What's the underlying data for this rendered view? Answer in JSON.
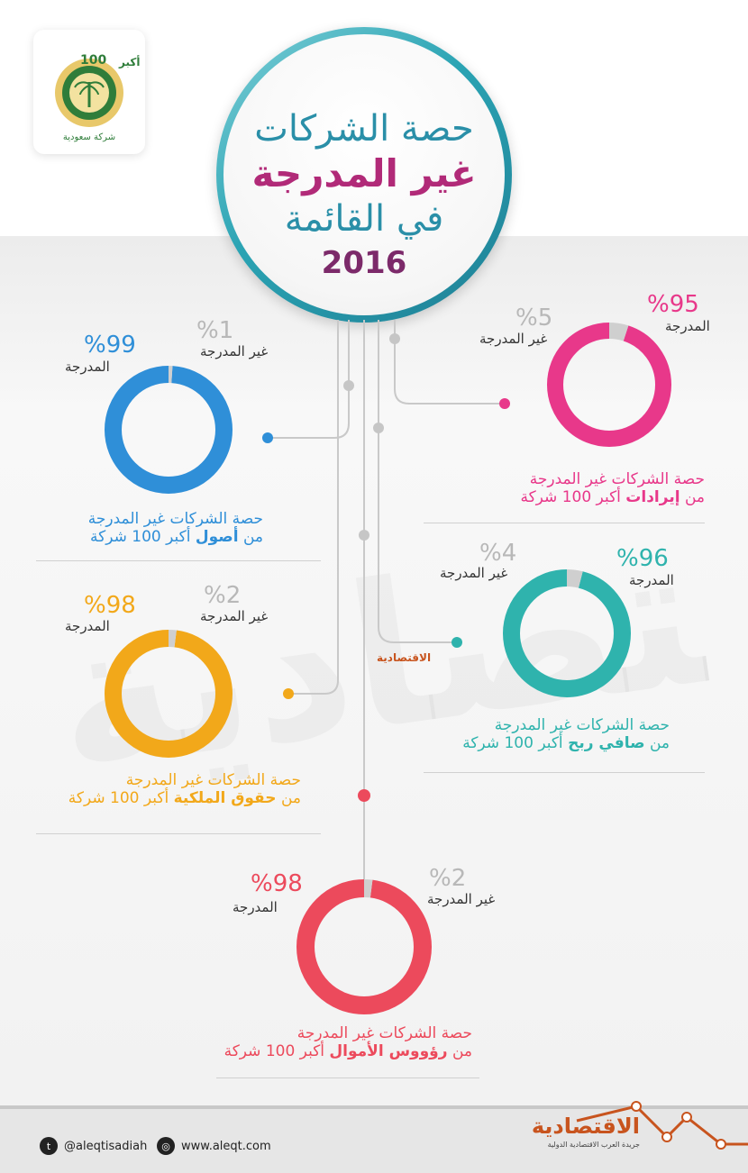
{
  "header": {
    "title_line1": "حصة الشركات",
    "title_line2": "غير المدرجة",
    "title_line3": "في القائمة",
    "year": "2016"
  },
  "logo": {
    "number": "100",
    "text_top": "أكبر",
    "text_bottom": "شركة سعودية"
  },
  "charts": [
    {
      "id": "revenues",
      "listed_pct": "%95",
      "listed_label": "المدرجة",
      "unlisted_pct": "%5",
      "unlisted_label": "غير المدرجة",
      "listed_value": 95,
      "unlisted_value": 5,
      "color": "#e8388a",
      "desc_line1": "حصة الشركات غير المدرجة",
      "desc_prefix": "من",
      "desc_bold": "إيرادات",
      "desc_suffix": "أكبر 100 شركة"
    },
    {
      "id": "assets",
      "listed_pct": "%99",
      "listed_label": "المدرجة",
      "unlisted_pct": "%1",
      "unlisted_label": "غير المدرجة",
      "listed_value": 99,
      "unlisted_value": 1,
      "color": "#2f8fd8",
      "desc_line1": "حصة الشركات غير المدرجة",
      "desc_prefix": "من",
      "desc_bold": "أصول",
      "desc_suffix": "أكبر 100 شركة"
    },
    {
      "id": "net_profit",
      "listed_pct": "%96",
      "listed_label": "المدرجة",
      "unlisted_pct": "%4",
      "unlisted_label": "غير المدرجة",
      "listed_value": 96,
      "unlisted_value": 4,
      "color": "#2fb3ad",
      "desc_line1": "حصة الشركات غير المدرجة",
      "desc_prefix": "من",
      "desc_bold": "صافي ربح",
      "desc_suffix": "أكبر 100 شركة"
    },
    {
      "id": "equity",
      "listed_pct": "%98",
      "listed_label": "المدرجة",
      "unlisted_pct": "%2",
      "unlisted_label": "غير المدرجة",
      "listed_value": 98,
      "unlisted_value": 2,
      "color": "#f2a81a",
      "desc_line1": "حصة الشركات غير المدرجة",
      "desc_prefix": "من",
      "desc_bold": "حقوق الملكية",
      "desc_suffix": "أكبر 100 شركة"
    },
    {
      "id": "capital",
      "listed_pct": "%98",
      "listed_label": "المدرجة",
      "unlisted_pct": "%2",
      "unlisted_label": "غير المدرجة",
      "listed_value": 98,
      "unlisted_value": 2,
      "color": "#ec4a5c",
      "desc_line1": "حصة الشركات غير المدرجة",
      "desc_prefix": "من",
      "desc_bold": "رؤووس الأموال",
      "desc_suffix": "أكبر 100 شركة"
    }
  ],
  "watermark": "الاقتصادية",
  "mid_brand": "الاقتصادية",
  "footer": {
    "twitter_handle": "@aleqtisadiah",
    "website": "www.aleqt.com",
    "brand_name": "الاقتصادية",
    "brand_tagline": "جريدة العرب الاقتصادية الدولية"
  },
  "colors": {
    "unlisted_segment": "#cfcfcf",
    "title_teal": "#2a8fa8",
    "title_magenta": "#b12a78",
    "brand_orange": "#c8541e"
  }
}
